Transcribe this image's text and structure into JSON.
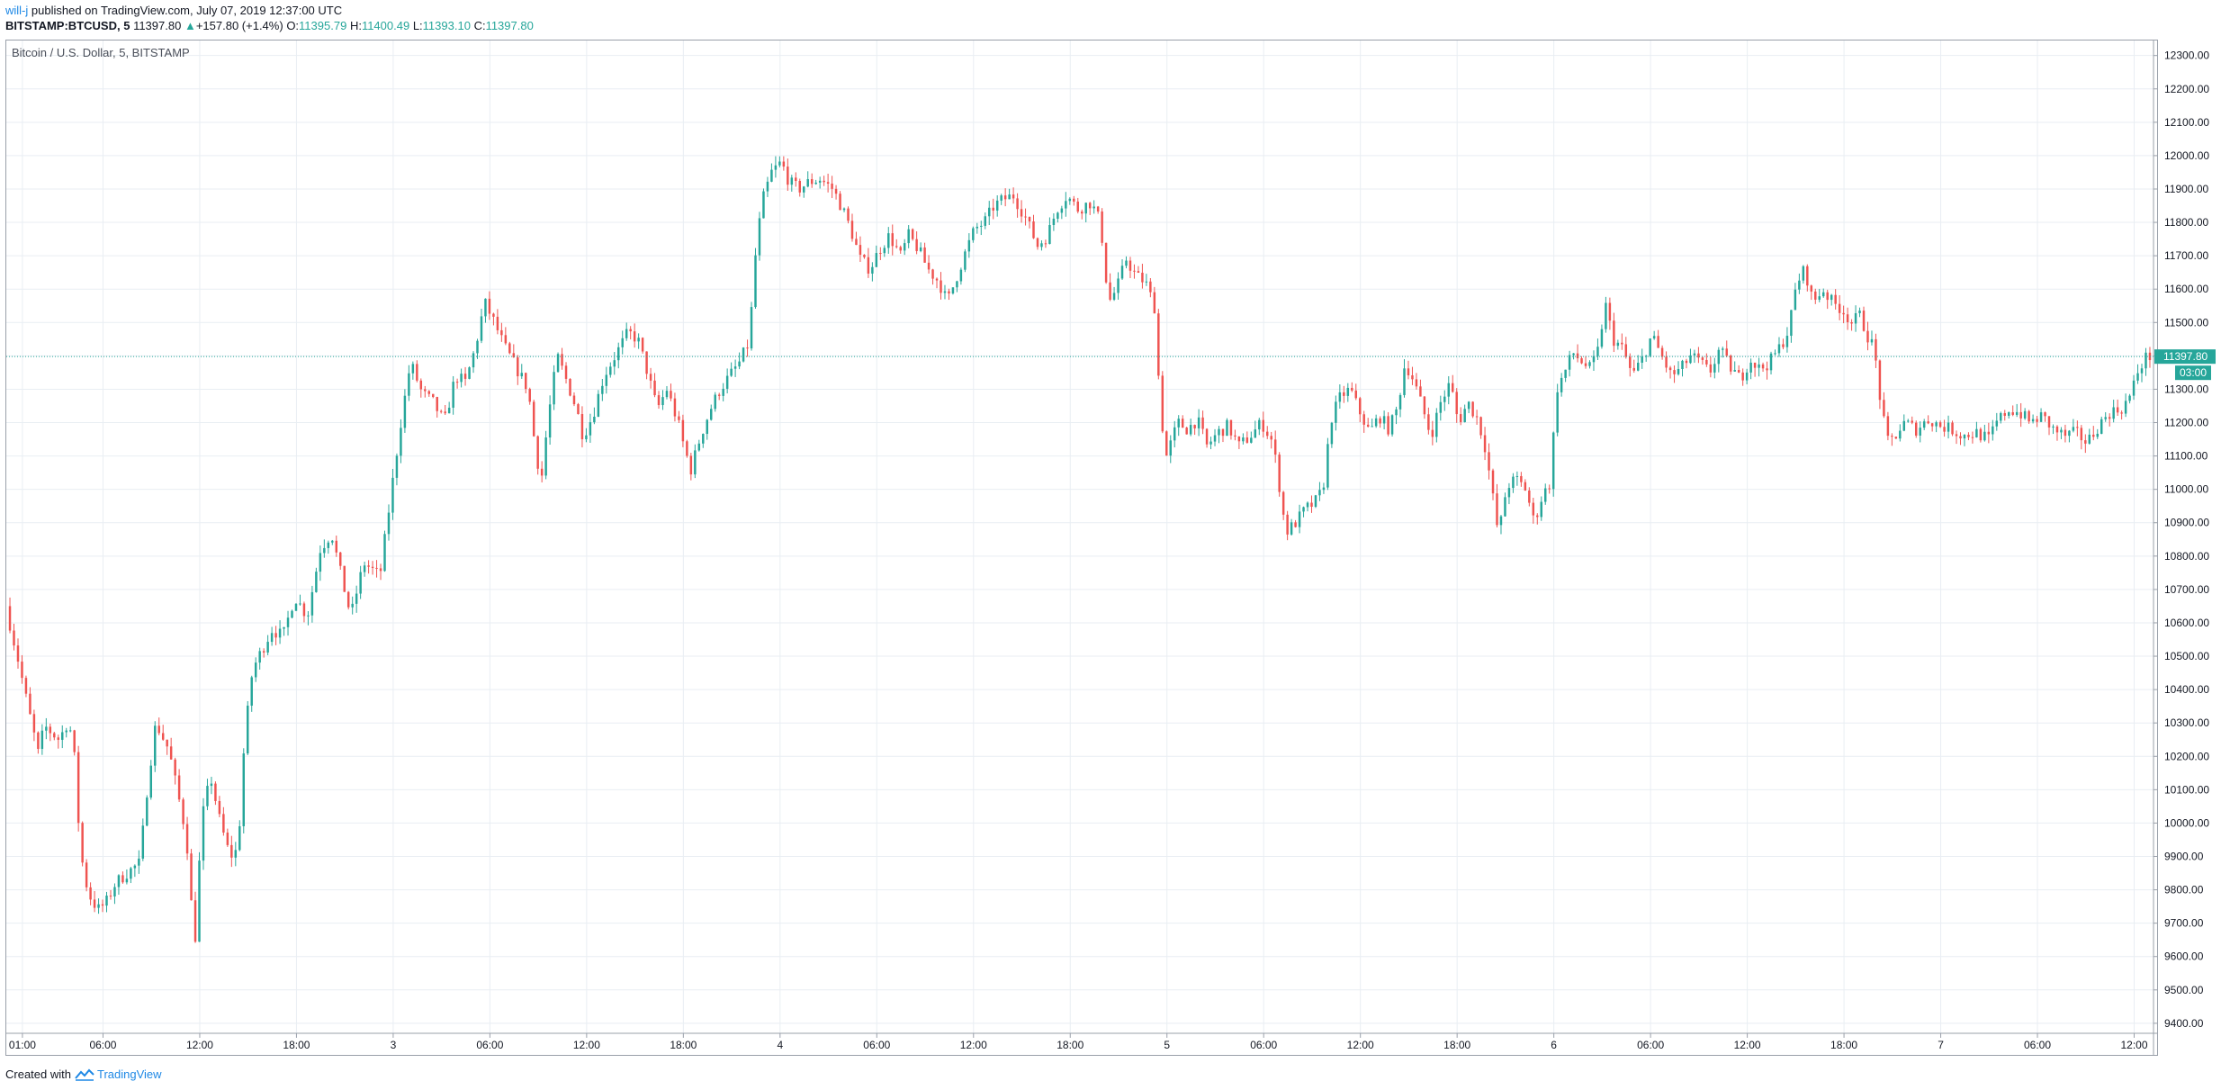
{
  "header": {
    "author": "will-j",
    "published": "published on TradingView.com, July 07, 2019 12:37:00 UTC",
    "symbol": "BITSTAMP:BTCUSD, 5",
    "last": "11397.80",
    "change_arrow": "▲",
    "change": "+157.80 (+1.4%)",
    "o_label": "O:",
    "o_value": "11395.79",
    "h_label": "H:",
    "h_value": "11400.49",
    "l_label": "L:",
    "l_value": "11393.10",
    "c_label": "C:",
    "c_value": "11397.80"
  },
  "legend": "Bitcoin / U.S. Dollar, 5, BITSTAMP",
  "footer": {
    "created_with": "Created with",
    "brand": "TradingView",
    "brand_icon": "tradingview-logo-icon"
  },
  "colors": {
    "up": "#26a69a",
    "down": "#ef5350",
    "grid": "#e9eef3",
    "axis_text": "#131722",
    "price_line": "#26a69a",
    "link": "#1e88e5"
  },
  "price_marker": {
    "price": "11397.80",
    "countdown": "03:00"
  },
  "chart_data": {
    "type": "candlestick",
    "title": "Bitcoin / U.S. Dollar, 5, BITSTAMP",
    "interval": "5",
    "y_ticks": [
      "12300.00",
      "12200.00",
      "12100.00",
      "12000.00",
      "11900.00",
      "11800.00",
      "11700.00",
      "11600.00",
      "11500.00",
      "11400.00",
      "11300.00",
      "11200.00",
      "11100.00",
      "11000.00",
      "10900.00",
      "10800.00",
      "10700.00",
      "10600.00",
      "10500.00",
      "10400.00",
      "10300.00",
      "10200.00",
      "10100.00",
      "10000.00",
      "9900.00",
      "9800.00",
      "9700.00",
      "9600.00",
      "9500.00",
      "9400.00"
    ],
    "ylim": [
      9370,
      12345
    ],
    "x_ticks": [
      "01:00",
      "06:00",
      "12:00",
      "18:00",
      "3",
      "06:00",
      "12:00",
      "18:00",
      "4",
      "06:00",
      "12:00",
      "18:00",
      "5",
      "06:00",
      "12:00",
      "18:00",
      "6",
      "06:00",
      "12:00",
      "18:00",
      "7",
      "06:00",
      "12:00"
    ],
    "x_tick_hours": [
      1,
      6,
      12,
      18,
      24,
      30,
      36,
      42,
      48,
      54,
      60,
      66,
      72,
      78,
      84,
      90,
      96,
      102,
      108,
      114,
      120,
      126,
      132
    ],
    "xlim_hours": [
      0,
      133.2
    ],
    "grid": true,
    "last_price": 11397.8,
    "price_path": [
      [
        0.1,
        10650
      ],
      [
        0.9,
        10480
      ],
      [
        1.5,
        10340
      ],
      [
        2.1,
        10210
      ],
      [
        2.5,
        10290
      ],
      [
        3.4,
        10250
      ],
      [
        4.0,
        10310
      ],
      [
        4.4,
        10180
      ],
      [
        4.7,
        9920
      ],
      [
        5.2,
        9790
      ],
      [
        5.8,
        9740
      ],
      [
        6.3,
        9760
      ],
      [
        6.9,
        9820
      ],
      [
        7.6,
        9850
      ],
      [
        8.4,
        9880
      ],
      [
        8.9,
        10120
      ],
      [
        9.4,
        10300
      ],
      [
        10.2,
        10220
      ],
      [
        10.8,
        10080
      ],
      [
        11.3,
        9960
      ],
      [
        11.6,
        9760
      ],
      [
        11.9,
        9640
      ],
      [
        12.2,
        10000
      ],
      [
        12.8,
        10140
      ],
      [
        13.4,
        10000
      ],
      [
        14.0,
        9900
      ],
      [
        14.5,
        9920
      ],
      [
        14.9,
        10250
      ],
      [
        15.4,
        10460
      ],
      [
        16.0,
        10520
      ],
      [
        16.6,
        10580
      ],
      [
        17.3,
        10560
      ],
      [
        18.0,
        10680
      ],
      [
        18.8,
        10620
      ],
      [
        19.6,
        10820
      ],
      [
        20.3,
        10870
      ],
      [
        20.9,
        10740
      ],
      [
        21.5,
        10620
      ],
      [
        22.3,
        10780
      ],
      [
        23.3,
        10740
      ],
      [
        24.0,
        10990
      ],
      [
        24.6,
        11200
      ],
      [
        25.2,
        11380
      ],
      [
        25.9,
        11290
      ],
      [
        26.6,
        11260
      ],
      [
        27.3,
        11200
      ],
      [
        28.0,
        11340
      ],
      [
        28.6,
        11320
      ],
      [
        29.2,
        11420
      ],
      [
        29.8,
        11560
      ],
      [
        30.4,
        11500
      ],
      [
        31.0,
        11430
      ],
      [
        31.8,
        11360
      ],
      [
        32.5,
        11300
      ],
      [
        32.9,
        11140
      ],
      [
        33.3,
        11020
      ],
      [
        33.7,
        11200
      ],
      [
        34.3,
        11400
      ],
      [
        35.0,
        11310
      ],
      [
        35.5,
        11240
      ],
      [
        35.9,
        11160
      ],
      [
        36.5,
        11220
      ],
      [
        37.2,
        11340
      ],
      [
        38.0,
        11410
      ],
      [
        38.7,
        11470
      ],
      [
        39.3,
        11450
      ],
      [
        39.9,
        11350
      ],
      [
        40.5,
        11240
      ],
      [
        41.1,
        11300
      ],
      [
        41.8,
        11200
      ],
      [
        42.2,
        11120
      ],
      [
        42.6,
        11060
      ],
      [
        43.2,
        11160
      ],
      [
        43.8,
        11240
      ],
      [
        44.4,
        11300
      ],
      [
        45.0,
        11340
      ],
      [
        45.6,
        11380
      ],
      [
        46.2,
        11440
      ],
      [
        46.6,
        11700
      ],
      [
        47.0,
        11860
      ],
      [
        47.6,
        11950
      ],
      [
        48.2,
        11980
      ],
      [
        48.7,
        11920
      ],
      [
        49.3,
        11900
      ],
      [
        49.9,
        11920
      ],
      [
        50.6,
        11930
      ],
      [
        51.4,
        11900
      ],
      [
        52.0,
        11840
      ],
      [
        52.5,
        11780
      ],
      [
        53.1,
        11690
      ],
      [
        53.7,
        11660
      ],
      [
        54.3,
        11720
      ],
      [
        54.9,
        11760
      ],
      [
        55.6,
        11700
      ],
      [
        56.1,
        11760
      ],
      [
        56.7,
        11720
      ],
      [
        57.3,
        11660
      ],
      [
        58.0,
        11620
      ],
      [
        58.5,
        11560
      ],
      [
        59.1,
        11640
      ],
      [
        59.7,
        11720
      ],
      [
        60.2,
        11780
      ],
      [
        60.8,
        11800
      ],
      [
        61.4,
        11850
      ],
      [
        62.0,
        11870
      ],
      [
        62.6,
        11880
      ],
      [
        63.3,
        11820
      ],
      [
        64.1,
        11730
      ],
      [
        64.7,
        11760
      ],
      [
        65.3,
        11840
      ],
      [
        65.9,
        11880
      ],
      [
        66.6,
        11840
      ],
      [
        67.4,
        11860
      ],
      [
        68.0,
        11800
      ],
      [
        68.5,
        11560
      ],
      [
        69.0,
        11600
      ],
      [
        69.6,
        11690
      ],
      [
        70.2,
        11640
      ],
      [
        70.8,
        11620
      ],
      [
        71.4,
        11540
      ],
      [
        71.7,
        11240
      ],
      [
        72.1,
        11100
      ],
      [
        72.8,
        11200
      ],
      [
        73.4,
        11180
      ],
      [
        74.0,
        11210
      ],
      [
        74.6,
        11130
      ],
      [
        75.3,
        11170
      ],
      [
        75.9,
        11190
      ],
      [
        76.6,
        11130
      ],
      [
        77.3,
        11160
      ],
      [
        78.0,
        11200
      ],
      [
        78.7,
        11140
      ],
      [
        79.1,
        11010
      ],
      [
        79.5,
        10870
      ],
      [
        80.1,
        10900
      ],
      [
        80.7,
        10940
      ],
      [
        81.3,
        10960
      ],
      [
        81.8,
        11000
      ],
      [
        82.3,
        11210
      ],
      [
        82.9,
        11280
      ],
      [
        83.5,
        11300
      ],
      [
        84.0,
        11240
      ],
      [
        84.7,
        11170
      ],
      [
        85.3,
        11220
      ],
      [
        85.9,
        11180
      ],
      [
        86.4,
        11240
      ],
      [
        86.9,
        11380
      ],
      [
        87.4,
        11330
      ],
      [
        88.0,
        11240
      ],
      [
        88.5,
        11160
      ],
      [
        89.1,
        11260
      ],
      [
        89.7,
        11320
      ],
      [
        90.2,
        11200
      ],
      [
        90.8,
        11260
      ],
      [
        91.4,
        11210
      ],
      [
        91.9,
        11120
      ],
      [
        92.3,
        10990
      ],
      [
        92.7,
        10860
      ],
      [
        93.2,
        11010
      ],
      [
        93.8,
        11030
      ],
      [
        94.4,
        11000
      ],
      [
        94.9,
        10900
      ],
      [
        95.4,
        10980
      ],
      [
        95.9,
        11020
      ],
      [
        96.3,
        11300
      ],
      [
        96.8,
        11350
      ],
      [
        97.3,
        11410
      ],
      [
        97.9,
        11380
      ],
      [
        98.4,
        11360
      ],
      [
        98.9,
        11420
      ],
      [
        99.3,
        11560
      ],
      [
        99.8,
        11450
      ],
      [
        100.4,
        11420
      ],
      [
        101.0,
        11340
      ],
      [
        101.6,
        11390
      ],
      [
        102.2,
        11460
      ],
      [
        102.8,
        11400
      ],
      [
        103.4,
        11340
      ],
      [
        104.0,
        11360
      ],
      [
        104.6,
        11400
      ],
      [
        105.2,
        11380
      ],
      [
        105.8,
        11350
      ],
      [
        106.4,
        11420
      ],
      [
        107.0,
        11370
      ],
      [
        107.7,
        11330
      ],
      [
        108.3,
        11390
      ],
      [
        108.9,
        11360
      ],
      [
        109.5,
        11380
      ],
      [
        110.2,
        11430
      ],
      [
        110.7,
        11480
      ],
      [
        111.2,
        11620
      ],
      [
        111.7,
        11660
      ],
      [
        112.2,
        11560
      ],
      [
        112.8,
        11600
      ],
      [
        113.4,
        11560
      ],
      [
        114.0,
        11540
      ],
      [
        114.6,
        11500
      ],
      [
        115.1,
        11520
      ],
      [
        115.6,
        11460
      ],
      [
        116.0,
        11420
      ],
      [
        116.4,
        11260
      ],
      [
        116.8,
        11140
      ],
      [
        117.3,
        11160
      ],
      [
        117.9,
        11200
      ],
      [
        118.6,
        11180
      ],
      [
        119.4,
        11210
      ],
      [
        120.1,
        11190
      ],
      [
        120.8,
        11180
      ],
      [
        121.5,
        11160
      ],
      [
        122.3,
        11170
      ],
      [
        123.1,
        11150
      ],
      [
        123.6,
        11200
      ],
      [
        124.3,
        11240
      ],
      [
        125.0,
        11230
      ],
      [
        125.7,
        11200
      ],
      [
        126.4,
        11220
      ],
      [
        127.1,
        11180
      ],
      [
        127.8,
        11160
      ],
      [
        128.5,
        11170
      ],
      [
        129.2,
        11140
      ],
      [
        129.9,
        11190
      ],
      [
        130.6,
        11230
      ],
      [
        131.3,
        11240
      ],
      [
        131.9,
        11280
      ],
      [
        132.4,
        11360
      ],
      [
        132.9,
        11397.8
      ]
    ]
  }
}
